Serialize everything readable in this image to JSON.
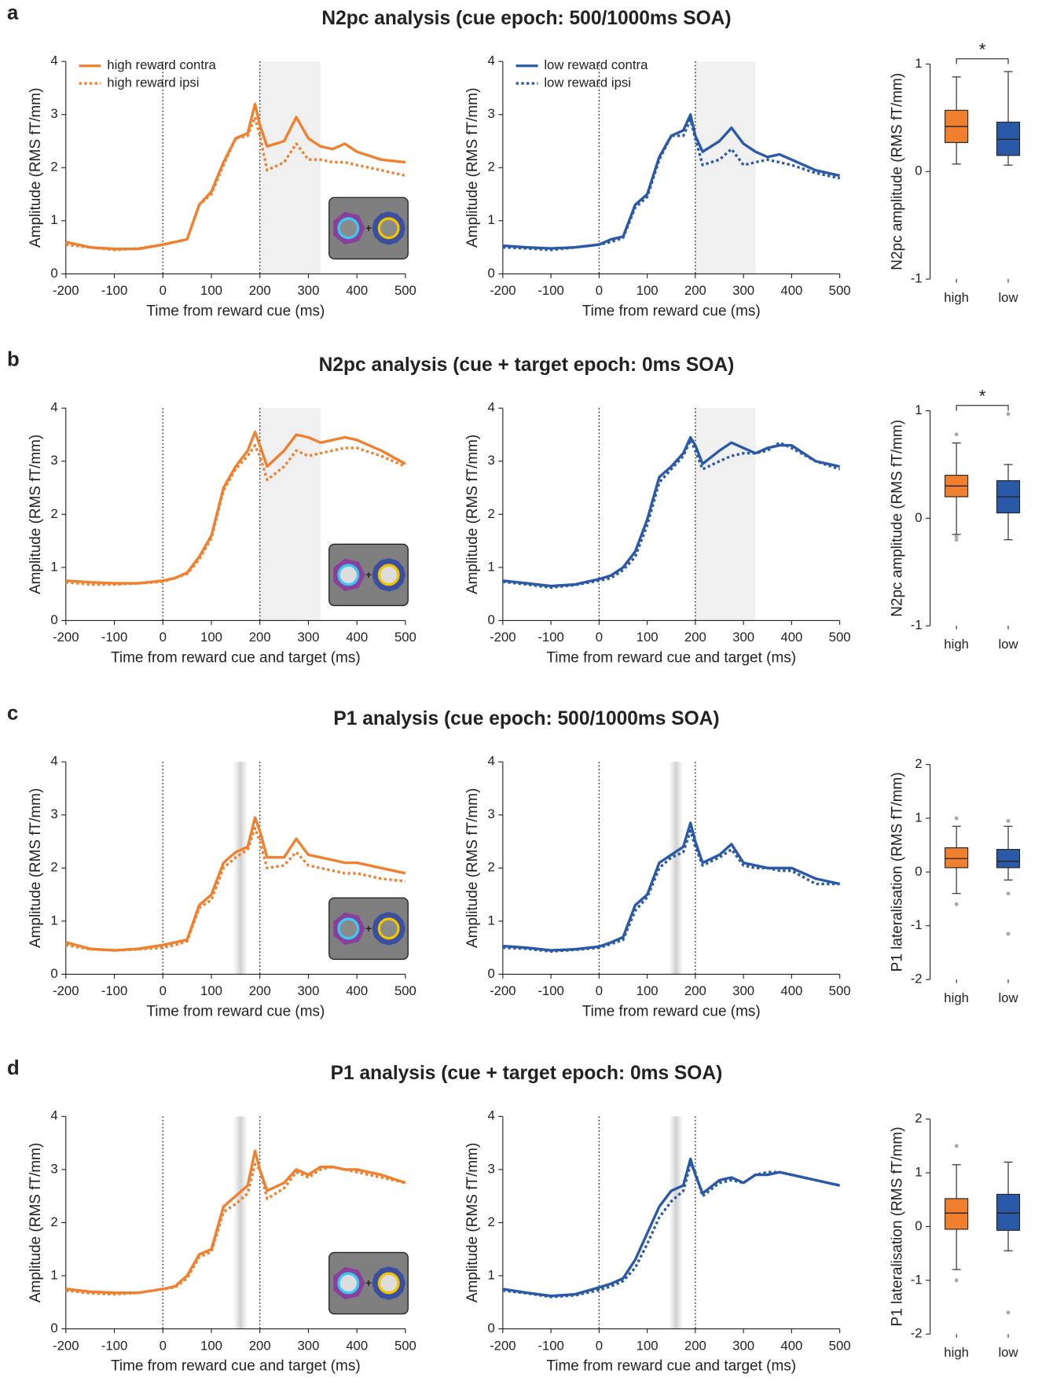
{
  "panels": [
    {
      "label": "a",
      "title": "N2pc analysis (cue epoch: 500/1000ms SOA)"
    },
    {
      "label": "b",
      "title": "N2pc analysis (cue + target epoch: 0ms SOA)"
    },
    {
      "label": "c",
      "title": "P1 analysis (cue epoch: 500/1000ms SOA)"
    },
    {
      "label": "d",
      "title": "P1 analysis (cue + target epoch: 0ms SOA)"
    }
  ],
  "chart_data": [
    {
      "type": "line",
      "xlabel": "Time from reward cue (ms)",
      "ylabel": "Amplitude (RMS fT/mm)",
      "legend": true,
      "x": [
        -200,
        -150,
        -100,
        -50,
        0,
        25,
        50,
        75,
        100,
        125,
        150,
        175,
        190,
        200,
        215,
        250,
        275,
        300,
        325,
        350,
        375,
        400,
        450,
        500
      ],
      "xlim": [
        -200,
        500
      ],
      "xticks": [
        -200,
        -100,
        0,
        100,
        200,
        300,
        400,
        500
      ],
      "ylim": [
        0,
        4
      ],
      "yticks": [
        0,
        1,
        2,
        3,
        4
      ],
      "vlines": [
        0,
        200
      ],
      "shade": [
        200,
        325
      ],
      "series": [
        {
          "name": "high reward contra",
          "color": "#f07f2e",
          "dash": false,
          "values": [
            0.6,
            0.5,
            0.47,
            0.47,
            0.55,
            0.6,
            0.65,
            1.3,
            1.55,
            2.1,
            2.55,
            2.65,
            3.2,
            2.8,
            2.4,
            2.5,
            2.95,
            2.55,
            2.4,
            2.35,
            2.45,
            2.3,
            2.15,
            2.1
          ]
        },
        {
          "name": "high reward ipsi",
          "color": "#f07f2e",
          "dash": true,
          "values": [
            0.55,
            0.5,
            0.45,
            0.48,
            0.55,
            0.6,
            0.65,
            1.3,
            1.5,
            2.05,
            2.55,
            2.6,
            2.95,
            2.6,
            1.95,
            2.1,
            2.45,
            2.15,
            2.15,
            2.1,
            2.1,
            2.05,
            1.95,
            1.85
          ]
        }
      ]
    },
    {
      "type": "line",
      "xlabel": "Time from reward cue (ms)",
      "ylabel": "Amplitude (RMS fT/mm)",
      "legend": true,
      "x": [
        -200,
        -150,
        -100,
        -50,
        0,
        25,
        50,
        75,
        100,
        125,
        150,
        175,
        190,
        200,
        215,
        250,
        275,
        300,
        325,
        350,
        375,
        400,
        450,
        500
      ],
      "xlim": [
        -200,
        500
      ],
      "xticks": [
        -200,
        -100,
        0,
        100,
        200,
        300,
        400,
        500
      ],
      "ylim": [
        0,
        4
      ],
      "yticks": [
        0,
        1,
        2,
        3,
        4
      ],
      "vlines": [
        0,
        200
      ],
      "shade": [
        200,
        325
      ],
      "series": [
        {
          "name": "low reward contra",
          "color": "#2a59a8",
          "dash": false,
          "values": [
            0.53,
            0.5,
            0.48,
            0.5,
            0.55,
            0.65,
            0.7,
            1.3,
            1.5,
            2.2,
            2.6,
            2.7,
            3.0,
            2.6,
            2.3,
            2.5,
            2.75,
            2.45,
            2.3,
            2.2,
            2.25,
            2.15,
            1.95,
            1.85
          ]
        },
        {
          "name": "low reward ipsi",
          "color": "#2a59a8",
          "dash": true,
          "values": [
            0.5,
            0.48,
            0.45,
            0.5,
            0.55,
            0.6,
            0.68,
            1.25,
            1.45,
            2.15,
            2.6,
            2.6,
            2.9,
            2.55,
            2.05,
            2.15,
            2.35,
            2.05,
            2.1,
            2.15,
            2.1,
            2.05,
            1.9,
            1.8
          ]
        }
      ]
    },
    {
      "type": "box",
      "ylabel": "N2pc amplitude (RMS fT/mm)",
      "categories": [
        "high",
        "low"
      ],
      "ylim": [
        -1,
        1
      ],
      "yticks": [
        -1,
        0,
        1
      ],
      "annotation": "*",
      "boxes": [
        {
          "color": "#f07f2e",
          "min": 0.07,
          "q1": 0.27,
          "median": 0.42,
          "q3": 0.57,
          "max": 0.88,
          "outliers": []
        },
        {
          "color": "#2a59a8",
          "min": 0.06,
          "q1": 0.15,
          "median": 0.3,
          "q3": 0.46,
          "max": 0.93,
          "outliers": []
        }
      ]
    },
    {
      "type": "line",
      "xlabel": "Time from reward cue and target (ms)",
      "ylabel": "Amplitude (RMS fT/mm)",
      "legend": false,
      "x": [
        -200,
        -150,
        -100,
        -50,
        0,
        25,
        50,
        75,
        100,
        125,
        150,
        175,
        190,
        200,
        215,
        250,
        275,
        300,
        325,
        350,
        375,
        400,
        450,
        500
      ],
      "xlim": [
        -200,
        500
      ],
      "xticks": [
        -200,
        -100,
        0,
        100,
        200,
        300,
        400,
        500
      ],
      "ylim": [
        0,
        4
      ],
      "yticks": [
        0,
        1,
        2,
        3,
        4
      ],
      "vlines": [
        0,
        200
      ],
      "shade": [
        200,
        325
      ],
      "series": [
        {
          "color": "#f07f2e",
          "dash": false,
          "values": [
            0.75,
            0.72,
            0.7,
            0.7,
            0.75,
            0.8,
            0.9,
            1.2,
            1.6,
            2.5,
            2.9,
            3.2,
            3.55,
            3.3,
            2.9,
            3.2,
            3.5,
            3.45,
            3.35,
            3.4,
            3.45,
            3.4,
            3.2,
            2.95
          ]
        },
        {
          "color": "#f07f2e",
          "dash": true,
          "values": [
            0.72,
            0.68,
            0.68,
            0.7,
            0.73,
            0.8,
            0.88,
            1.15,
            1.55,
            2.45,
            2.85,
            3.1,
            3.3,
            3.1,
            2.65,
            2.9,
            3.2,
            3.1,
            3.15,
            3.2,
            3.25,
            3.25,
            3.1,
            2.9
          ]
        }
      ]
    },
    {
      "type": "line",
      "xlabel": "Time from reward cue and target (ms)",
      "ylabel": "Amplitude (RMS fT/mm)",
      "legend": false,
      "x": [
        -200,
        -150,
        -100,
        -50,
        0,
        25,
        50,
        75,
        100,
        125,
        150,
        175,
        190,
        200,
        215,
        250,
        275,
        300,
        325,
        350,
        375,
        400,
        450,
        500
      ],
      "xlim": [
        -200,
        500
      ],
      "xticks": [
        -200,
        -100,
        0,
        100,
        200,
        300,
        400,
        500
      ],
      "ylim": [
        0,
        4
      ],
      "yticks": [
        0,
        1,
        2,
        3,
        4
      ],
      "vlines": [
        0,
        200
      ],
      "shade": [
        200,
        325
      ],
      "series": [
        {
          "color": "#2a59a8",
          "dash": false,
          "values": [
            0.75,
            0.7,
            0.65,
            0.68,
            0.78,
            0.85,
            1.0,
            1.3,
            1.9,
            2.7,
            2.9,
            3.15,
            3.45,
            3.3,
            2.95,
            3.2,
            3.35,
            3.25,
            3.15,
            3.25,
            3.3,
            3.3,
            3.0,
            2.9
          ]
        },
        {
          "color": "#2a59a8",
          "dash": true,
          "values": [
            0.73,
            0.68,
            0.62,
            0.67,
            0.75,
            0.8,
            0.95,
            1.2,
            1.8,
            2.6,
            2.85,
            3.1,
            3.4,
            3.2,
            2.85,
            3.0,
            3.1,
            3.15,
            3.15,
            3.2,
            3.35,
            3.25,
            3.0,
            2.85
          ]
        }
      ]
    },
    {
      "type": "box",
      "ylabel": "N2pc amplitude (RMS fT/mm)",
      "categories": [
        "high",
        "low"
      ],
      "ylim": [
        -1,
        1
      ],
      "yticks": [
        -1,
        0,
        1
      ],
      "annotation": "*",
      "boxes": [
        {
          "color": "#f07f2e",
          "min": -0.15,
          "q1": 0.2,
          "median": 0.3,
          "q3": 0.4,
          "max": 0.7,
          "outliers": [
            0.78,
            -0.17,
            -0.2
          ]
        },
        {
          "color": "#2a59a8",
          "min": -0.2,
          "q1": 0.05,
          "median": 0.2,
          "q3": 0.35,
          "max": 0.5,
          "outliers": [
            0.97
          ]
        }
      ]
    },
    {
      "type": "line",
      "xlabel": "Time from reward cue (ms)",
      "ylabel": "Amplitude (RMS fT/mm)",
      "legend": false,
      "x": [
        -200,
        -150,
        -100,
        -50,
        0,
        25,
        50,
        75,
        100,
        125,
        150,
        175,
        190,
        200,
        215,
        250,
        275,
        300,
        325,
        350,
        375,
        400,
        450,
        500
      ],
      "xlim": [
        -200,
        500
      ],
      "xticks": [
        -200,
        -100,
        0,
        100,
        200,
        300,
        400,
        500
      ],
      "ylim": [
        0,
        4
      ],
      "yticks": [
        0,
        1,
        2,
        3,
        4
      ],
      "vlines": [
        0,
        200
      ],
      "shade": [
        145,
        175
      ],
      "series": [
        {
          "color": "#f07f2e",
          "dash": false,
          "values": [
            0.6,
            0.48,
            0.45,
            0.48,
            0.55,
            0.6,
            0.65,
            1.3,
            1.5,
            2.1,
            2.3,
            2.4,
            2.95,
            2.7,
            2.2,
            2.2,
            2.55,
            2.25,
            2.2,
            2.15,
            2.1,
            2.1,
            2.0,
            1.9
          ]
        },
        {
          "color": "#f07f2e",
          "dash": true,
          "values": [
            0.55,
            0.47,
            0.45,
            0.47,
            0.5,
            0.55,
            0.62,
            1.25,
            1.4,
            2.0,
            2.2,
            2.35,
            2.75,
            2.5,
            2.0,
            2.05,
            2.3,
            2.05,
            2.0,
            1.95,
            1.9,
            1.9,
            1.8,
            1.75
          ]
        }
      ]
    },
    {
      "type": "line",
      "xlabel": "Time from reward cue (ms)",
      "ylabel": "Amplitude (RMS fT/mm)",
      "legend": false,
      "x": [
        -200,
        -150,
        -100,
        -50,
        0,
        25,
        50,
        75,
        100,
        125,
        150,
        175,
        190,
        200,
        215,
        250,
        275,
        300,
        325,
        350,
        375,
        400,
        450,
        500
      ],
      "xlim": [
        -200,
        500
      ],
      "xticks": [
        -200,
        -100,
        0,
        100,
        200,
        300,
        400,
        500
      ],
      "ylim": [
        0,
        4
      ],
      "yticks": [
        0,
        1,
        2,
        3,
        4
      ],
      "vlines": [
        0,
        200
      ],
      "shade": [
        145,
        175
      ],
      "series": [
        {
          "color": "#2a59a8",
          "dash": false,
          "values": [
            0.53,
            0.5,
            0.45,
            0.47,
            0.52,
            0.6,
            0.7,
            1.3,
            1.5,
            2.1,
            2.25,
            2.4,
            2.85,
            2.5,
            2.1,
            2.25,
            2.45,
            2.1,
            2.05,
            2.0,
            2.0,
            2.0,
            1.8,
            1.7
          ]
        },
        {
          "color": "#2a59a8",
          "dash": true,
          "values": [
            0.5,
            0.48,
            0.43,
            0.46,
            0.5,
            0.57,
            0.65,
            1.2,
            1.45,
            2.0,
            2.2,
            2.3,
            2.7,
            2.4,
            2.05,
            2.2,
            2.35,
            2.05,
            2.0,
            2.0,
            1.95,
            1.95,
            1.7,
            1.7
          ]
        }
      ]
    },
    {
      "type": "box",
      "ylabel": "P1 lateralisation (RMS fT/mm)",
      "categories": [
        "high",
        "low"
      ],
      "ylim": [
        -2,
        2
      ],
      "yticks": [
        -2,
        -1,
        0,
        1,
        2
      ],
      "boxes": [
        {
          "color": "#f07f2e",
          "min": -0.4,
          "q1": 0.08,
          "median": 0.25,
          "q3": 0.45,
          "max": 0.85,
          "outliers": [
            1.0,
            -0.6
          ]
        },
        {
          "color": "#2a59a8",
          "min": -0.15,
          "q1": 0.08,
          "median": 0.2,
          "q3": 0.42,
          "max": 0.85,
          "outliers": [
            0.95,
            -0.4,
            -1.15
          ]
        }
      ]
    },
    {
      "type": "line",
      "xlabel": "Time from reward cue and target (ms)",
      "ylabel": "Amplitude (RMS fT/mm)",
      "legend": false,
      "x": [
        -200,
        -150,
        -100,
        -50,
        0,
        25,
        50,
        75,
        100,
        125,
        150,
        175,
        190,
        200,
        215,
        250,
        275,
        300,
        325,
        350,
        375,
        400,
        450,
        500
      ],
      "xlim": [
        -200,
        500
      ],
      "xticks": [
        -200,
        -100,
        0,
        100,
        200,
        300,
        400,
        500
      ],
      "ylim": [
        0,
        4
      ],
      "yticks": [
        0,
        1,
        2,
        3,
        4
      ],
      "vlines": [
        0,
        200
      ],
      "shade": [
        145,
        175
      ],
      "series": [
        {
          "color": "#f07f2e",
          "dash": false,
          "values": [
            0.75,
            0.7,
            0.68,
            0.68,
            0.75,
            0.8,
            1.0,
            1.4,
            1.5,
            2.3,
            2.5,
            2.7,
            3.35,
            3.0,
            2.6,
            2.75,
            3.0,
            2.9,
            3.05,
            3.05,
            3.0,
            3.0,
            2.9,
            2.75
          ]
        },
        {
          "color": "#f07f2e",
          "dash": true,
          "values": [
            0.72,
            0.67,
            0.65,
            0.68,
            0.75,
            0.78,
            0.95,
            1.35,
            1.45,
            2.2,
            2.35,
            2.55,
            3.1,
            3.0,
            2.45,
            2.65,
            2.95,
            2.85,
            3.0,
            3.05,
            3.0,
            2.95,
            2.85,
            2.75
          ]
        }
      ]
    },
    {
      "type": "line",
      "xlabel": "Time from reward cue and target (ms)",
      "ylabel": "Amplitude (RMS fT/mm)",
      "legend": false,
      "x": [
        -200,
        -150,
        -100,
        -50,
        0,
        25,
        50,
        75,
        100,
        125,
        150,
        175,
        190,
        200,
        215,
        250,
        275,
        300,
        325,
        350,
        375,
        400,
        450,
        500
      ],
      "xlim": [
        -200,
        500
      ],
      "xticks": [
        -200,
        -100,
        0,
        100,
        200,
        300,
        400,
        500
      ],
      "ylim": [
        0,
        4
      ],
      "yticks": [
        0,
        1,
        2,
        3,
        4
      ],
      "vlines": [
        0,
        200
      ],
      "shade": [
        145,
        175
      ],
      "series": [
        {
          "color": "#2a59a8",
          "dash": false,
          "values": [
            0.75,
            0.68,
            0.62,
            0.65,
            0.78,
            0.85,
            0.95,
            1.3,
            1.8,
            2.3,
            2.6,
            2.7,
            3.2,
            2.9,
            2.55,
            2.8,
            2.85,
            2.75,
            2.9,
            2.9,
            2.95,
            2.9,
            2.8,
            2.7
          ]
        },
        {
          "color": "#2a59a8",
          "dash": true,
          "values": [
            0.72,
            0.67,
            0.6,
            0.63,
            0.73,
            0.8,
            0.9,
            1.15,
            1.6,
            2.1,
            2.4,
            2.6,
            3.1,
            2.95,
            2.5,
            2.75,
            2.8,
            2.75,
            2.9,
            2.95,
            2.95,
            2.9,
            2.8,
            2.7
          ]
        }
      ]
    },
    {
      "type": "box",
      "ylabel": "P1 lateralisation (RMS fT/mm)",
      "categories": [
        "high",
        "low"
      ],
      "ylim": [
        -2,
        2
      ],
      "yticks": [
        -2,
        -1,
        0,
        1,
        2
      ],
      "boxes": [
        {
          "color": "#f07f2e",
          "min": -0.8,
          "q1": -0.05,
          "median": 0.25,
          "q3": 0.52,
          "max": 1.15,
          "outliers": [
            1.5,
            -1.0
          ]
        },
        {
          "color": "#2a59a8",
          "min": -0.45,
          "q1": -0.07,
          "median": 0.25,
          "q3": 0.6,
          "max": 1.2,
          "outliers": [
            -1.6
          ]
        }
      ]
    }
  ]
}
